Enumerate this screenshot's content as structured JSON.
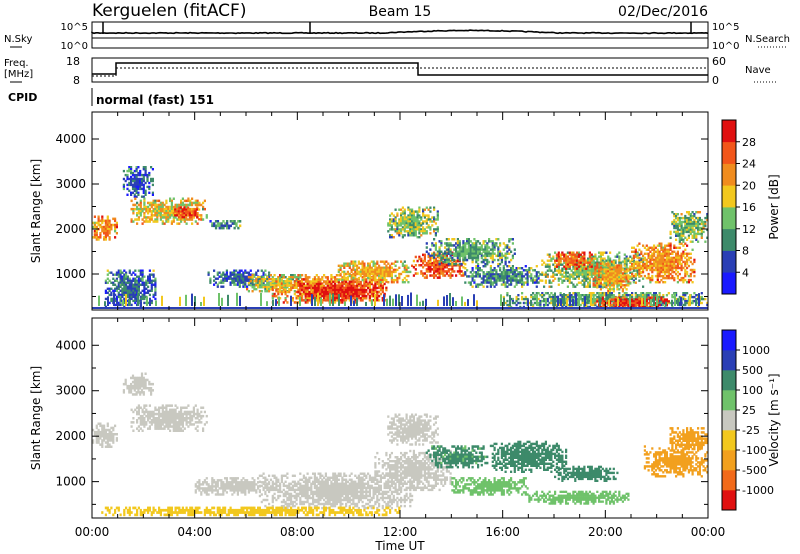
{
  "header": {
    "station": "Kerguelen (fitACF)",
    "beam": "Beam 15",
    "date": "02/Dec/2016"
  },
  "status_panels": {
    "nsky_label": "N.Sky",
    "nsearch_label": "N.Search",
    "freq_label_1": "Freq.",
    "freq_label_2": "[MHz]",
    "nave_label": "Nave",
    "cpid_label": "CPID",
    "cpid_value": "normal (fast) 151",
    "noise_left_ticks": [
      "10^5",
      "10^0"
    ],
    "noise_right_ticks": [
      "10^5",
      "10^0"
    ],
    "freq_ticks": [
      "18",
      "8"
    ],
    "nave_ticks": [
      "60",
      "0"
    ]
  },
  "colors": {
    "power_scale": [
      "#1a1aff",
      "#2a3fb5",
      "#3d8a6a",
      "#6fc26a",
      "#f2c81e",
      "#f08c1e",
      "#f2561a",
      "#e01010"
    ],
    "velocity_scale": [
      "#e01010",
      "#f26a1a",
      "#f2a01e",
      "#f2c81e",
      "#c8c8c0",
      "#6fc26a",
      "#3d8a6a",
      "#2a3fb5",
      "#1a1aff"
    ]
  },
  "chart_data": [
    {
      "type": "heatmap",
      "title": "",
      "ylabel": "Slant Range [km]",
      "y_ticks": [
        "1000",
        "2000",
        "3000",
        "4000"
      ],
      "ylim": [
        200,
        4600
      ],
      "xlim_hours": [
        0,
        24
      ],
      "colorbar_label": "Power [dB]",
      "colorbar_ticks": [
        "4",
        "8",
        "12",
        "16",
        "20",
        "24",
        "28"
      ],
      "colorbar_range": [
        0,
        32
      ],
      "regions": [
        {
          "t0": 0.0,
          "t1": 1.0,
          "r0": 1750,
          "r1": 2300,
          "value": 22
        },
        {
          "t0": 1.2,
          "t1": 2.4,
          "r0": 2700,
          "r1": 3400,
          "value": 6
        },
        {
          "t0": 1.5,
          "t1": 4.5,
          "r0": 2100,
          "r1": 2700,
          "value": 18
        },
        {
          "t0": 3.2,
          "t1": 4.2,
          "r0": 2200,
          "r1": 2500,
          "value": 26
        },
        {
          "t0": 4.5,
          "t1": 5.8,
          "r0": 2000,
          "r1": 2200,
          "value": 10
        },
        {
          "t0": 0.5,
          "t1": 2.5,
          "r0": 250,
          "r1": 1100,
          "value": 8
        },
        {
          "t0": 4.5,
          "t1": 7.0,
          "r0": 700,
          "r1": 1100,
          "value": 8
        },
        {
          "t0": 6.0,
          "t1": 8.5,
          "r0": 600,
          "r1": 1000,
          "value": 16
        },
        {
          "t0": 7.0,
          "t1": 11.5,
          "r0": 350,
          "r1": 1000,
          "value": 22
        },
        {
          "t0": 8.0,
          "t1": 11.5,
          "r0": 400,
          "r1": 850,
          "value": 29
        },
        {
          "t0": 9.5,
          "t1": 12.5,
          "r0": 800,
          "r1": 1300,
          "value": 20
        },
        {
          "t0": 12.5,
          "t1": 14.5,
          "r0": 900,
          "r1": 1500,
          "value": 26
        },
        {
          "t0": 11.5,
          "t1": 13.5,
          "r0": 1800,
          "r1": 2500,
          "value": 14
        },
        {
          "t0": 13.0,
          "t1": 16.5,
          "r0": 1200,
          "r1": 1800,
          "value": 12
        },
        {
          "t0": 14.5,
          "t1": 17.5,
          "r0": 700,
          "r1": 1200,
          "value": 10
        },
        {
          "t0": 17.5,
          "t1": 21.5,
          "r0": 700,
          "r1": 1500,
          "value": 14
        },
        {
          "t0": 18.0,
          "t1": 19.5,
          "r0": 1100,
          "r1": 1500,
          "value": 26
        },
        {
          "t0": 19.5,
          "t1": 21.0,
          "r0": 600,
          "r1": 1300,
          "value": 20
        },
        {
          "t0": 21.0,
          "t1": 23.5,
          "r0": 800,
          "r1": 1700,
          "value": 22
        },
        {
          "t0": 22.5,
          "t1": 24.0,
          "r0": 1700,
          "r1": 2400,
          "value": 14
        },
        {
          "t0": 16.0,
          "t1": 24.0,
          "r0": 250,
          "r1": 600,
          "value": 12
        },
        {
          "t0": 19.5,
          "t1": 22.5,
          "r0": 250,
          "r1": 500,
          "value": 28
        }
      ]
    },
    {
      "type": "heatmap",
      "title": "",
      "xlabel": "Time UT",
      "ylabel": "Slant Range [km]",
      "x_ticks": [
        "00:00",
        "04:00",
        "08:00",
        "12:00",
        "16:00",
        "20:00",
        "00:00"
      ],
      "y_ticks": [
        "1000",
        "2000",
        "3000",
        "4000"
      ],
      "ylim": [
        200,
        4600
      ],
      "xlim_hours": [
        0,
        24
      ],
      "colorbar_label": "Velocity [m s⁻¹]",
      "colorbar_ticks": [
        "-1000",
        "-500",
        "-100",
        "-25",
        "25",
        "100",
        "500",
        "1000"
      ],
      "regions": [
        {
          "t0": 0.0,
          "t1": 1.0,
          "r0": 1750,
          "r1": 2300,
          "value": 0
        },
        {
          "t0": 1.5,
          "t1": 4.5,
          "r0": 2100,
          "r1": 2700,
          "value": 0
        },
        {
          "t0": 1.2,
          "t1": 2.4,
          "r0": 2900,
          "r1": 3400,
          "value": 0
        },
        {
          "t0": 4.0,
          "t1": 7.0,
          "r0": 700,
          "r1": 1100,
          "value": 0
        },
        {
          "t0": 6.5,
          "t1": 12.5,
          "r0": 400,
          "r1": 1200,
          "value": 0
        },
        {
          "t0": 11.0,
          "t1": 14.0,
          "r0": 800,
          "r1": 1700,
          "value": 0
        },
        {
          "t0": 11.5,
          "t1": 13.5,
          "r0": 1800,
          "r1": 2500,
          "value": 0
        },
        {
          "t0": 13.0,
          "t1": 15.5,
          "r0": 1300,
          "r1": 1800,
          "value": 150
        },
        {
          "t0": 15.5,
          "t1": 18.5,
          "r0": 1200,
          "r1": 1900,
          "value": 300
        },
        {
          "t0": 18.0,
          "t1": 20.5,
          "r0": 1000,
          "r1": 1350,
          "value": 300
        },
        {
          "t0": 14.0,
          "t1": 17.0,
          "r0": 700,
          "r1": 1100,
          "value": 60
        },
        {
          "t0": 17.0,
          "t1": 21.0,
          "r0": 500,
          "r1": 800,
          "value": 60
        },
        {
          "t0": 21.5,
          "t1": 24.0,
          "r0": 1100,
          "r1": 1800,
          "value": -300
        },
        {
          "t0": 22.5,
          "t1": 24.0,
          "r0": 1700,
          "r1": 2200,
          "value": -300
        },
        {
          "t0": 0.0,
          "t1": 12.0,
          "r0": 250,
          "r1": 450,
          "value": -60
        }
      ]
    }
  ]
}
